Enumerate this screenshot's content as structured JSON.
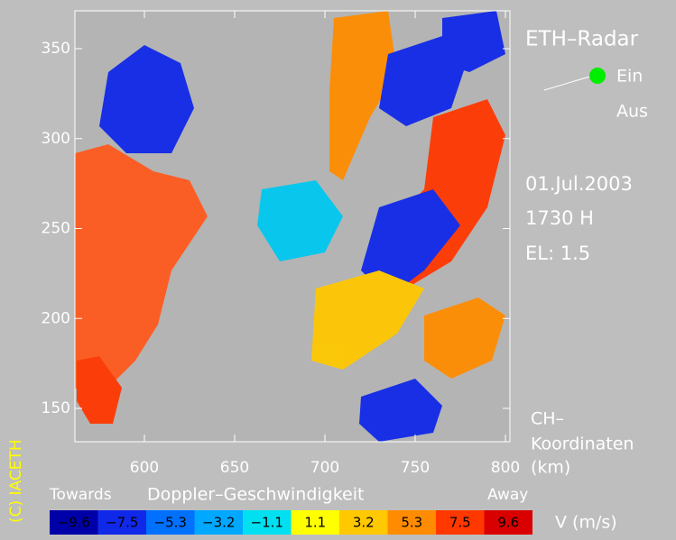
{
  "header": {
    "title": "ETH–Radar",
    "status_on": "Ein",
    "status_off": "Aus",
    "date": "01.Jul.2003",
    "time": "1730 H",
    "elevation": "EL: 1.5"
  },
  "axes": {
    "xticks": [
      600,
      650,
      700,
      750,
      800
    ],
    "yticks": [
      150,
      200,
      250,
      300,
      350
    ],
    "coord_label": [
      "CH–",
      "Koordinaten",
      "(km)"
    ]
  },
  "colorbar": {
    "left_label": "Towards",
    "title": "Doppler–Geschwindigkeit",
    "right_label": "Away",
    "unit": "V  (m/s)",
    "labels": [
      "−9.6",
      "−7.5",
      "−5.3",
      "−3.2",
      "−1.1",
      "1.1",
      "3.2",
      "5.3",
      "7.5",
      "9.6"
    ],
    "colors": [
      "#0000a8",
      "#1028e8",
      "#0070ff",
      "#00a8ff",
      "#00e0f0",
      "#ffff00",
      "#ffc800",
      "#ff8c00",
      "#ff3800",
      "#d80000"
    ]
  },
  "copyright": "(C) IACETH"
}
